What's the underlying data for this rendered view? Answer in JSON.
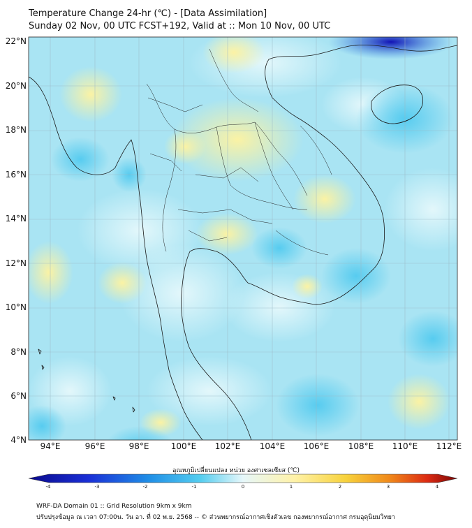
{
  "header": {
    "title_line1": "Temperature Change 24-hr (℃) - [Data Assimilation]",
    "title_line2": "Sunday 02 Nov, 00 UTC FCST+192, Valid at :: Mon 10 Nov, 00 UTC"
  },
  "map": {
    "lat_labels": [
      "22°N",
      "20°N",
      "18°N",
      "16°N",
      "14°N",
      "12°N",
      "10°N",
      "8°N",
      "6°N",
      "4°N"
    ],
    "lon_labels": [
      "94°E",
      "96°E",
      "98°E",
      "100°E",
      "102°E",
      "104°E",
      "106°E",
      "108°E",
      "110°E",
      "112°E"
    ],
    "colors": {
      "ocean_base": "#a9e4f3",
      "land_line": "#1a1a1a",
      "grid": "#9ab8c4"
    }
  },
  "colorbar": {
    "title": "อุณหภูมิเปลี่ยนแปลง หน่วย องศาเซลเซียส (℃)",
    "tick_labels": [
      "-4",
      "-3",
      "-2",
      "-1",
      "0",
      "1",
      "2",
      "3",
      "4"
    ],
    "range": [
      -4,
      4
    ]
  },
  "footer": {
    "line1": "WRF-DA Domain 01 :: Grid Resolution 9km x 9km",
    "line2": "ปรับปรุงข้อมูล ณ เวลา 07:00น. วัน อา. ที่ 02 พ.ย. 2568 -- © ส่วนพยากรณ์อากาศเชิงตัวเลข กองพยากรณ์อากาศ กรมอุตุนิยมวิทยา"
  }
}
